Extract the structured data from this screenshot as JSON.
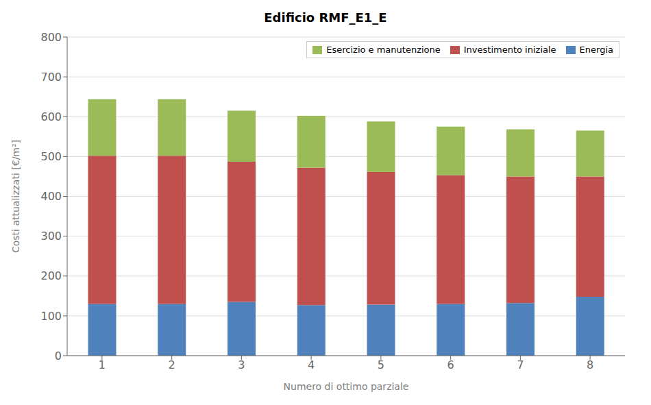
{
  "chart_data": {
    "type": "bar",
    "title": "Edificio RMF_E1_E",
    "x_label": "Numero di ottimo parziale",
    "y_label": "Costi attualizzati [€/m²]",
    "categories": [
      1,
      2,
      3,
      4,
      5,
      6,
      7,
      8
    ],
    "stacked": true,
    "series": [
      {
        "name": "Energia",
        "color": "#4F81BD",
        "values": [
          130,
          130,
          135,
          127,
          128,
          130,
          132,
          148
        ]
      },
      {
        "name": "Investimento iniziale",
        "color": "#C0504D",
        "values": [
          372,
          372,
          352,
          345,
          333,
          323,
          318,
          302
        ]
      },
      {
        "name": "Esercizio e manutenzione",
        "color": "#9BBB59",
        "values": [
          142,
          142,
          128,
          130,
          127,
          122,
          118,
          115
        ]
      }
    ],
    "ylim": [
      0,
      800
    ],
    "yticks": [
      0,
      100,
      200,
      300,
      400,
      500,
      600,
      700,
      800
    ],
    "grid": true,
    "legend": "upper right"
  }
}
